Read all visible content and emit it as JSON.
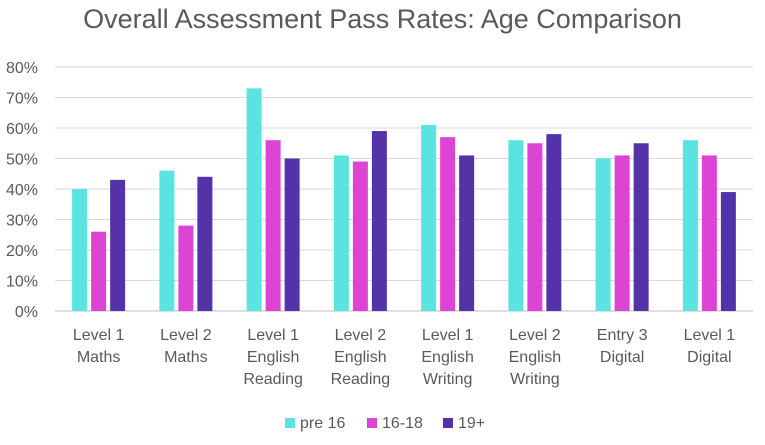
{
  "chart_data": {
    "type": "bar",
    "title": "Overall Assessment Pass Rates: Age Comparison",
    "categories": [
      [
        "Level 1",
        "Maths"
      ],
      [
        "Level 2",
        "Maths"
      ],
      [
        "Level 1",
        "English",
        "Reading"
      ],
      [
        "Level 2",
        "English",
        "Reading"
      ],
      [
        "Level 1",
        "English",
        "Writing"
      ],
      [
        "Level 2",
        "English",
        "Writing"
      ],
      [
        "Entry 3",
        "Digital"
      ],
      [
        "Level 1",
        "Digital"
      ]
    ],
    "series": [
      {
        "name": "pre 16",
        "color": "#59E3E1",
        "values": [
          40,
          46,
          73,
          51,
          61,
          56,
          50,
          56
        ]
      },
      {
        "name": "16-18",
        "color": "#DD44D3",
        "values": [
          26,
          28,
          56,
          49,
          57,
          55,
          51,
          51
        ]
      },
      {
        "name": "19+",
        "color": "#5432A8",
        "values": [
          43,
          44,
          50,
          59,
          51,
          58,
          55,
          39
        ]
      }
    ],
    "yticks": [
      "0%",
      "10%",
      "20%",
      "30%",
      "40%",
      "50%",
      "60%",
      "70%",
      "80%"
    ],
    "ylim": [
      0,
      80
    ],
    "grid": true,
    "legend_position": "bottom"
  }
}
